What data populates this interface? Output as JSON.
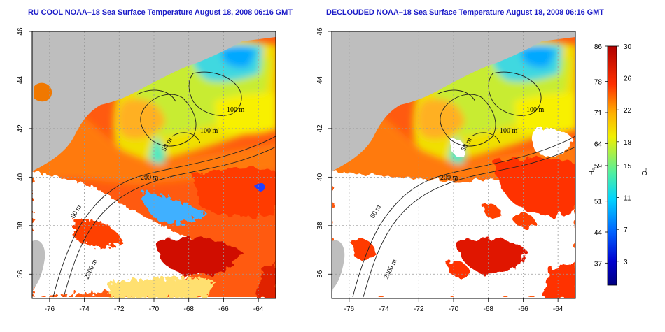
{
  "chart_data": [
    {
      "type": "heatmap",
      "title": "RU COOL NOAA–18 Sea Surface Temperature August 18, 2008 06:16 GMT",
      "xlim": [
        -77,
        -63
      ],
      "ylim": [
        35,
        46
      ],
      "x_ticks": [
        -76,
        -74,
        -72,
        -70,
        -68,
        -66,
        -64
      ],
      "y_ticks": [
        36,
        38,
        40,
        42,
        44,
        46
      ],
      "grid": true,
      "contour_labels": [
        "100 m",
        "100 m",
        "50 m",
        "200 m",
        "60 m",
        "2000 m"
      ]
    },
    {
      "type": "heatmap",
      "title": "DECLOUDED NOAA–18 Sea Surface Temperature August 18, 2008 06:16 GMT",
      "xlim": [
        -77,
        -63
      ],
      "ylim": [
        35,
        46
      ],
      "x_ticks": [
        -76,
        -74,
        -72,
        -70,
        -68,
        -66,
        -64
      ],
      "y_ticks": [
        36,
        38,
        40,
        42,
        44,
        46
      ],
      "grid": true,
      "contour_labels": [
        "100 m",
        "100 m",
        "50 m",
        "200 m",
        "60 m",
        "2000 m"
      ]
    }
  ],
  "colorbar": {
    "fahrenheit_label": "°F",
    "celsius_label": "°C",
    "fahrenheit_ticks": [
      "86",
      "78",
      "71",
      "64",
      "59",
      "51",
      "44",
      "37"
    ],
    "celsius_ticks": [
      "30",
      "26",
      "22",
      "18",
      "15",
      "11",
      "7",
      "3"
    ],
    "range_c": [
      0,
      30
    ],
    "range_f": [
      32,
      86
    ]
  },
  "colors": {
    "land": "#bebebe",
    "cloud": "#ffffff",
    "title": "#1c1cc8"
  }
}
